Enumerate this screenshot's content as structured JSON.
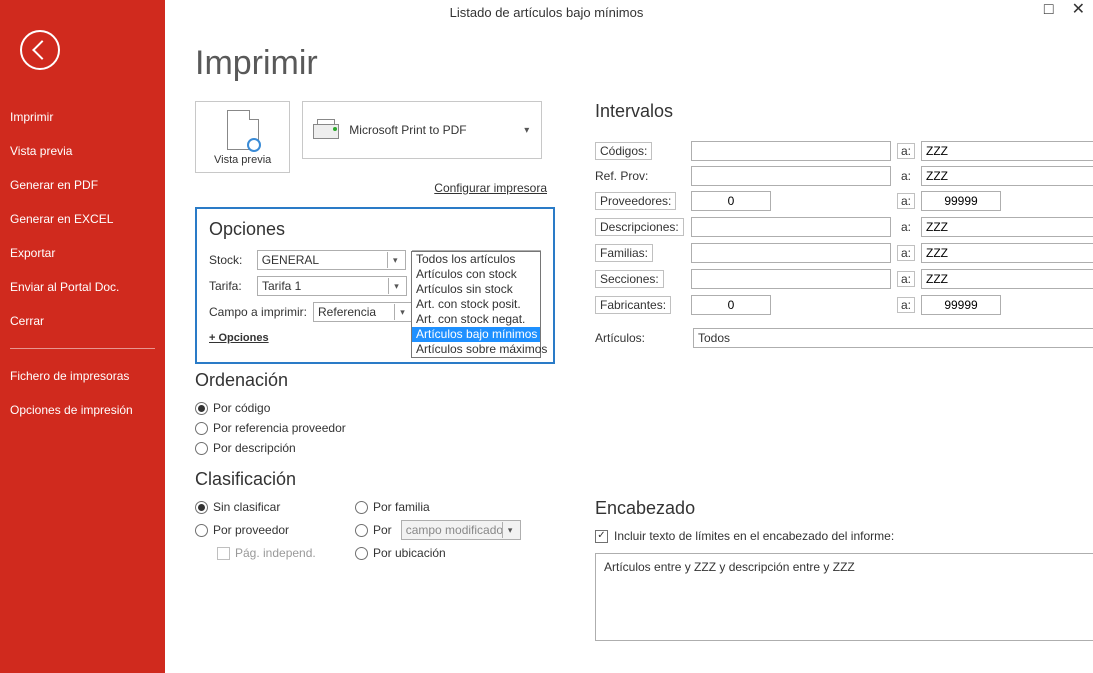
{
  "titlebar": {
    "title": "Listado de artículos bajo mínimos"
  },
  "sidebar": {
    "items": [
      {
        "label": "Imprimir"
      },
      {
        "label": "Vista previa"
      },
      {
        "label": "Generar en PDF"
      },
      {
        "label": "Generar en EXCEL"
      },
      {
        "label": "Exportar"
      },
      {
        "label": "Enviar al Portal Doc."
      },
      {
        "label": "Cerrar"
      }
    ],
    "items2": [
      {
        "label": "Fichero de impresoras"
      },
      {
        "label": "Opciones de impresión"
      }
    ]
  },
  "page": {
    "title": "Imprimir",
    "preview_label": "Vista previa",
    "printer_name": "Microsoft Print to PDF",
    "configure_printer": "Configurar impresora"
  },
  "opciones": {
    "title": "Opciones",
    "stock_label": "Stock:",
    "stock_value": "GENERAL",
    "filter_value": "Artículos bajo mínimo",
    "tarifa_label": "Tarifa:",
    "tarifa_value": "Tarifa 1",
    "campo_label": "Campo a imprimir:",
    "campo_value": "Referencia",
    "more_options": "+ Opciones",
    "dropdown_options": [
      "Todos los artículos",
      "Artículos con stock",
      "Artículos sin stock",
      "Art. con stock posit.",
      "Art. con stock negat.",
      "Artículos bajo mínimos",
      "Artículos sobre máximos"
    ],
    "dropdown_selected_index": 5
  },
  "ordenacion": {
    "title": "Ordenación",
    "options": [
      {
        "label": "Por código",
        "checked": true
      },
      {
        "label": "Por referencia proveedor",
        "checked": false
      },
      {
        "label": "Por descripción",
        "checked": false
      }
    ]
  },
  "clasificacion": {
    "title": "Clasificación",
    "sin_clasificar": "Sin clasificar",
    "por_proveedor": "Por proveedor",
    "pag_independ": "Pág. independ.",
    "por_familia": "Por familia",
    "por": "Por",
    "campo_modificado": "campo modificado",
    "por_ubicacion": "Por ubicación"
  },
  "intervalos": {
    "title": "Intervalos",
    "a": "a:",
    "rows": [
      {
        "label": "Códigos:",
        "boxed_label": true,
        "from": "",
        "to": "ZZZ",
        "boxed_a": true
      },
      {
        "label": "Ref. Prov:",
        "boxed_label": false,
        "from": "",
        "to": "ZZZ",
        "boxed_a": false
      },
      {
        "label": "Proveedores:",
        "boxed_label": true,
        "from": "0",
        "to": "99999",
        "num": true,
        "boxed_a": true
      },
      {
        "label": "Descripciones:",
        "boxed_label": true,
        "from": "",
        "to": "ZZZ",
        "boxed_a": false
      },
      {
        "label": "Familias:",
        "boxed_label": true,
        "from": "",
        "to": "ZZZ",
        "boxed_a": true
      },
      {
        "label": "Secciones:",
        "boxed_label": true,
        "from": "",
        "to": "ZZZ",
        "boxed_a": true
      },
      {
        "label": "Fabricantes:",
        "boxed_label": true,
        "from": "0",
        "to": "99999",
        "num": true,
        "boxed_a": true
      }
    ],
    "articulos_label": "Artículos:",
    "articulos_value": "Todos"
  },
  "encabezado": {
    "title": "Encabezado",
    "include_label": "Incluir texto de límites en el encabezado del informe:",
    "text": "Artículos entre  y ZZZ y descripción entre  y ZZZ"
  },
  "colors": {
    "accent_red": "#d02a1e",
    "panel_border": "#2a7bc7",
    "selection_blue": "#1e90ff"
  }
}
